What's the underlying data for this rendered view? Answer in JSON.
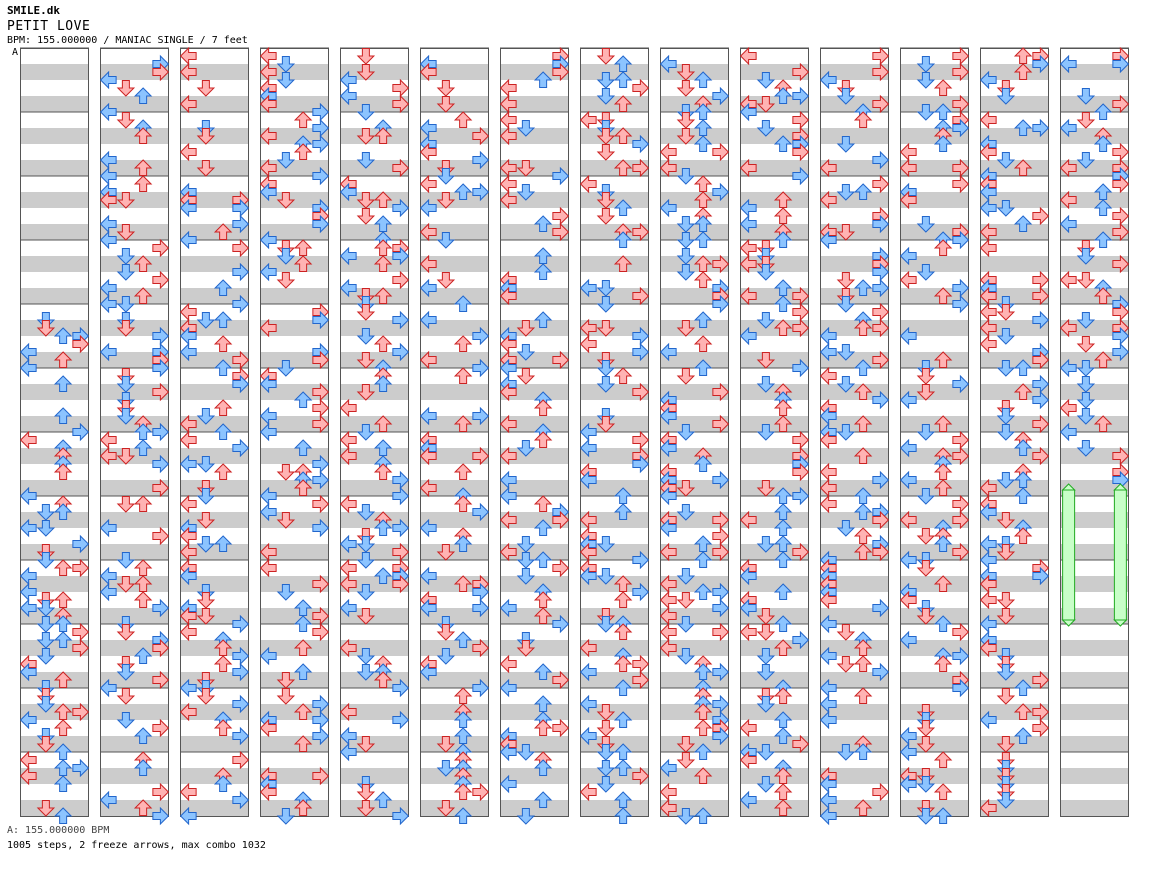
{
  "header": {
    "artist": "SMILE.dk",
    "title": "PETIT LOVE",
    "meta": "BPM: 155.000000 / MANIAC SINGLE / 7 feet",
    "section_marker": "A"
  },
  "footer": {
    "bpm_line": "A: 155.000000 BPM",
    "stats_line": "1005 steps, 2 freeze arrows, max combo 1032"
  },
  "colors": {
    "quarter_arrow": "#ffb3b3",
    "quarter_stroke": "#cc2222",
    "eighth_arrow": "#8cc4ff",
    "eighth_stroke": "#2266cc",
    "freeze_arrow": "#ffc0ff",
    "freeze_bar": "#c8ffc8",
    "freeze_stroke": "#22aa22",
    "stripe": "#cccccc"
  },
  "chart_data": {
    "type": "step_chart",
    "columns": 14,
    "measures_per_column": 12,
    "lanes": [
      "left",
      "down",
      "up",
      "right"
    ],
    "bpm": 155,
    "steps": 1005,
    "freeze_arrows": 2,
    "max_combo": 1032
  }
}
